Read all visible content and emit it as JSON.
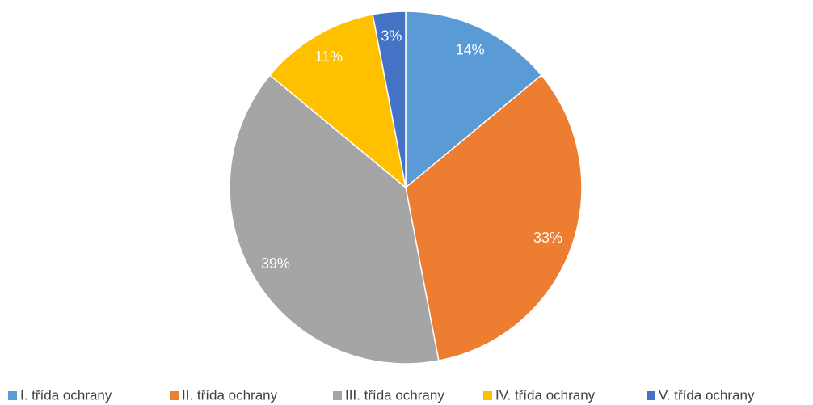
{
  "chart_data": {
    "type": "pie",
    "categories": [
      "I. třída ochrany",
      "II. třída ochrany",
      "III. třída ochrany",
      "IV. třída ochrany",
      "V. třída ochrany"
    ],
    "values": [
      14,
      33,
      39,
      11,
      3
    ],
    "value_labels": [
      "14%",
      "33%",
      "39%",
      "11%",
      "3%"
    ],
    "colors": [
      "#5b9bd5",
      "#ed7d31",
      "#a5a5a5",
      "#ffc000",
      "#4472c4"
    ],
    "legend": "bottom"
  }
}
